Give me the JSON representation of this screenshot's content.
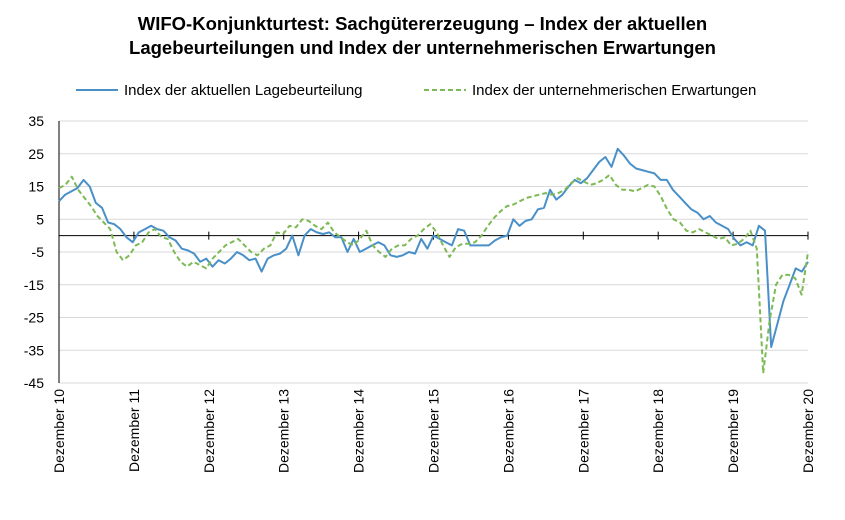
{
  "chart_data": {
    "type": "line",
    "title_line1": "WIFO-Konjunkturtest: Sachgütererzeugung – Index der aktuellen",
    "title_line2": "Lagebeurteilungen und Index der unternehmerischen Erwartungen",
    "xlabel": "",
    "ylabel": "",
    "ylim": [
      -45,
      35
    ],
    "yticks": [
      "35",
      "25",
      "15",
      "5",
      "-5",
      "-15",
      "-25",
      "-35",
      "-45"
    ],
    "ytick_values": [
      35,
      25,
      15,
      5,
      -5,
      -15,
      -25,
      -35,
      -45
    ],
    "xlim": [
      0,
      120
    ],
    "xtick_labels": [
      "Dezember 10",
      "Dezember 11",
      "Dezember 12",
      "Dezember 13",
      "Dezember 14",
      "Dezember 15",
      "Dezember 16",
      "Dezember 17",
      "Dezember 18",
      "Dezember 19",
      "Dezember 20"
    ],
    "xtick_positions": [
      0,
      12,
      24,
      36,
      48,
      60,
      72,
      84,
      96,
      108,
      120
    ],
    "grid": true,
    "legend_position": "top",
    "series": [
      {
        "name": "Index der aktuellen Lagebeurteilung",
        "color": "#4a90c8",
        "style": "solid",
        "values": [
          10.5,
          12.5,
          13.5,
          14.5,
          17,
          15,
          10,
          8.5,
          4,
          3.5,
          2,
          -0.5,
          -2,
          1,
          2,
          3,
          2,
          1.5,
          -0.5,
          -1.5,
          -4,
          -4.5,
          -5.5,
          -8,
          -7,
          -9.5,
          -7.5,
          -8.5,
          -7,
          -5,
          -6,
          -7.5,
          -7,
          -11,
          -7,
          -6,
          -5.5,
          -4,
          0,
          -6,
          0,
          2,
          1,
          0.5,
          1,
          -0.5,
          -0.5,
          -5,
          -1,
          -5,
          -4,
          -3,
          -2,
          -3,
          -6,
          -6.5,
          -6,
          -5,
          -5.5,
          -1,
          -4,
          0,
          -1,
          -2,
          -3,
          2,
          1.5,
          -3,
          -3,
          -3,
          -3,
          -1.5,
          -0.5,
          0,
          5,
          3,
          4.5,
          5,
          8,
          8.5,
          14,
          11,
          12.5,
          15,
          17,
          16,
          17.5,
          20,
          22.5,
          24,
          21,
          26.5,
          24.5,
          22,
          20.5,
          20,
          19.5,
          19,
          17,
          17,
          14,
          12,
          10,
          8,
          7,
          5,
          6,
          4,
          3,
          2,
          -1,
          -3,
          -2,
          -3,
          3,
          1.5,
          -34,
          -27,
          -20,
          -15,
          -10,
          -11,
          -8
        ]
      },
      {
        "name": "Index der unternehmerischen Erwartungen",
        "color": "#7dba55",
        "style": "dashed",
        "values": [
          14.5,
          15.5,
          18,
          14,
          11.5,
          9,
          6,
          4,
          2,
          -5,
          -7.5,
          -6,
          -3,
          -2,
          1,
          2,
          -0.5,
          -1,
          -5,
          -8,
          -9.5,
          -8,
          -9,
          -10,
          -7,
          -5,
          -3,
          -2,
          -1,
          -3,
          -5,
          -6,
          -4,
          -3,
          1,
          0.5,
          3,
          2.5,
          5,
          4.5,
          3,
          2,
          4,
          1,
          -0.5,
          -2,
          -3,
          -1,
          1.5,
          -3,
          -5,
          -6.5,
          -4,
          -3,
          -3,
          -1,
          0,
          2,
          3.5,
          1,
          -3,
          -6.5,
          -3.5,
          -2.5,
          -2.5,
          -2,
          0,
          3,
          5.5,
          7.5,
          9,
          9.5,
          10.5,
          11.5,
          12,
          12.5,
          13,
          12.5,
          13,
          14,
          16,
          17.5,
          16.5,
          15.5,
          16,
          17,
          18.5,
          15.5,
          14,
          14,
          13.5,
          14.5,
          15.5,
          15,
          12,
          8,
          5,
          4,
          1.5,
          1,
          2,
          1,
          0,
          -1,
          -0.5,
          -3,
          -2.5,
          -1,
          1.5,
          -4,
          -42,
          -26,
          -15,
          -12,
          -12,
          -13,
          -18,
          -5
        ]
      }
    ]
  }
}
